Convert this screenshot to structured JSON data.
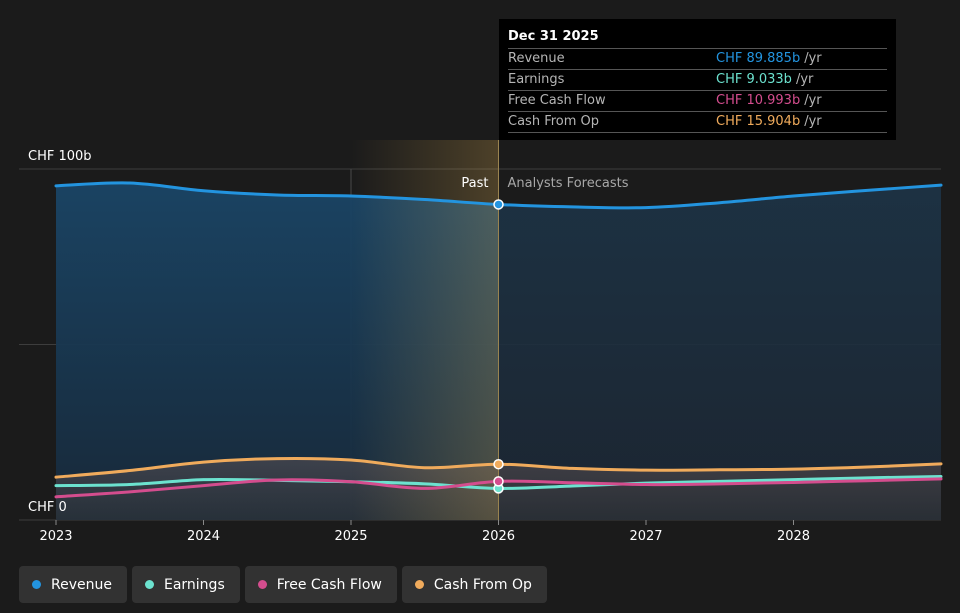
{
  "chart_data": {
    "type": "area",
    "currency": "CHF",
    "y_labels": [
      "CHF 100b",
      "CHF 0"
    ],
    "ylim": [
      0,
      100
    ],
    "xlim": [
      2023.0,
      2029.0
    ],
    "x_ticks": [
      {
        "value": 2023,
        "label": "2023"
      },
      {
        "value": 2024,
        "label": "2024"
      },
      {
        "value": 2025,
        "label": "2025"
      },
      {
        "value": 2026,
        "label": "2026"
      },
      {
        "value": 2027,
        "label": "2027"
      },
      {
        "value": 2028,
        "label": "2028"
      }
    ],
    "past_label": "Past",
    "forecast_label": "Analysts Forecasts",
    "divider_x": 2026.0,
    "highlight_start_x": 2025.0,
    "series": [
      {
        "name": "Revenue",
        "color": "#2394df",
        "points": [
          [
            2023.0,
            95.2
          ],
          [
            2023.5,
            96.0
          ],
          [
            2024.0,
            93.8
          ],
          [
            2024.5,
            92.6
          ],
          [
            2025.0,
            92.3
          ],
          [
            2025.5,
            91.3
          ],
          [
            2026.0,
            89.9
          ],
          [
            2026.5,
            89.2
          ],
          [
            2027.0,
            89.0
          ],
          [
            2027.5,
            90.4
          ],
          [
            2028.0,
            92.3
          ],
          [
            2028.5,
            93.9
          ],
          [
            2029.0,
            95.4
          ]
        ]
      },
      {
        "name": "Earnings",
        "color": "#6ce2cf",
        "points": [
          [
            2023.0,
            9.8
          ],
          [
            2023.5,
            10.1
          ],
          [
            2024.0,
            11.5
          ],
          [
            2024.5,
            11.3
          ],
          [
            2025.0,
            10.9
          ],
          [
            2025.5,
            10.3
          ],
          [
            2026.0,
            9.0
          ],
          [
            2026.5,
            9.7
          ],
          [
            2027.0,
            10.5
          ],
          [
            2027.5,
            11.0
          ],
          [
            2028.0,
            11.5
          ],
          [
            2028.5,
            12.0
          ],
          [
            2029.0,
            12.4
          ]
        ]
      },
      {
        "name": "Free Cash Flow",
        "color": "#d44d8e",
        "points": [
          [
            2023.0,
            6.6
          ],
          [
            2023.5,
            8.0
          ],
          [
            2024.0,
            9.8
          ],
          [
            2024.5,
            11.4
          ],
          [
            2025.0,
            10.9
          ],
          [
            2025.5,
            9.0
          ],
          [
            2026.0,
            11.0
          ],
          [
            2026.5,
            10.6
          ],
          [
            2027.0,
            10.1
          ],
          [
            2027.5,
            10.3
          ],
          [
            2028.0,
            10.7
          ],
          [
            2028.5,
            11.2
          ],
          [
            2029.0,
            11.7
          ]
        ]
      },
      {
        "name": "Cash From Op",
        "color": "#f0ab5c",
        "points": [
          [
            2023.0,
            12.2
          ],
          [
            2023.5,
            14.1
          ],
          [
            2024.0,
            16.5
          ],
          [
            2024.5,
            17.5
          ],
          [
            2025.0,
            17.1
          ],
          [
            2025.5,
            14.9
          ],
          [
            2026.0,
            15.9
          ],
          [
            2026.5,
            14.7
          ],
          [
            2027.0,
            14.2
          ],
          [
            2027.5,
            14.3
          ],
          [
            2028.0,
            14.5
          ],
          [
            2028.5,
            15.1
          ],
          [
            2029.0,
            16.0
          ]
        ]
      }
    ]
  },
  "tooltip": {
    "date": "Dec 31 2025",
    "rows": [
      {
        "label": "Revenue",
        "value": "CHF 89.885b",
        "unit": "/yr",
        "color": "#2394df"
      },
      {
        "label": "Earnings",
        "value": "CHF 9.033b",
        "unit": "/yr",
        "color": "#6ce2cf"
      },
      {
        "label": "Free Cash Flow",
        "value": "CHF 10.993b",
        "unit": "/yr",
        "color": "#d44d8e"
      },
      {
        "label": "Cash From Op",
        "value": "CHF 15.904b",
        "unit": "/yr",
        "color": "#f0ab5c"
      }
    ]
  },
  "legend": [
    {
      "label": "Revenue",
      "color": "#2394df"
    },
    {
      "label": "Earnings",
      "color": "#6ce2cf"
    },
    {
      "label": "Free Cash Flow",
      "color": "#d44d8e"
    },
    {
      "label": "Cash From Op",
      "color": "#f0ab5c"
    }
  ]
}
